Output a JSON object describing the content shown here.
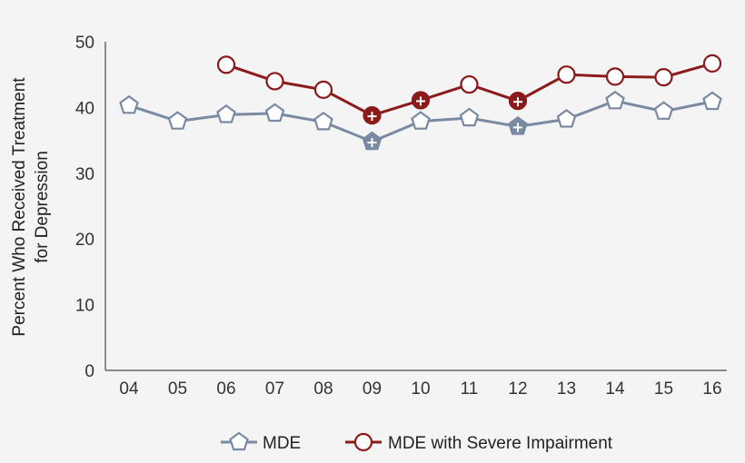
{
  "chart_data": {
    "type": "line",
    "categories": [
      "04",
      "05",
      "06",
      "07",
      "08",
      "09",
      "10",
      "11",
      "12",
      "13",
      "14",
      "15",
      "16"
    ],
    "ylabel_lines": [
      "Percent Who Received Treatment",
      "for Depression"
    ],
    "ylim": [
      0,
      50
    ],
    "yticks": [
      "0",
      "10",
      "20",
      "30",
      "40",
      "50"
    ],
    "grid": false,
    "legend_position": "bottom",
    "series": [
      {
        "name": "MDE",
        "color": "#7a8aa3",
        "marker": "pentagon",
        "values": [
          40.3,
          37.9,
          38.9,
          39.1,
          37.8,
          34.8,
          37.9,
          38.4,
          37.1,
          38.2,
          41.0,
          39.4,
          40.9
        ],
        "significant": [
          false,
          false,
          false,
          false,
          false,
          true,
          false,
          false,
          true,
          false,
          false,
          false,
          false
        ]
      },
      {
        "name": "MDE with Severe Impairment",
        "color": "#8b1a1a",
        "marker": "circle",
        "values": [
          null,
          null,
          46.5,
          44.0,
          42.7,
          38.8,
          41.1,
          43.5,
          41.0,
          45.0,
          44.7,
          44.6,
          46.7
        ],
        "significant": [
          false,
          false,
          false,
          false,
          false,
          true,
          true,
          false,
          true,
          false,
          false,
          false,
          false
        ]
      }
    ]
  }
}
